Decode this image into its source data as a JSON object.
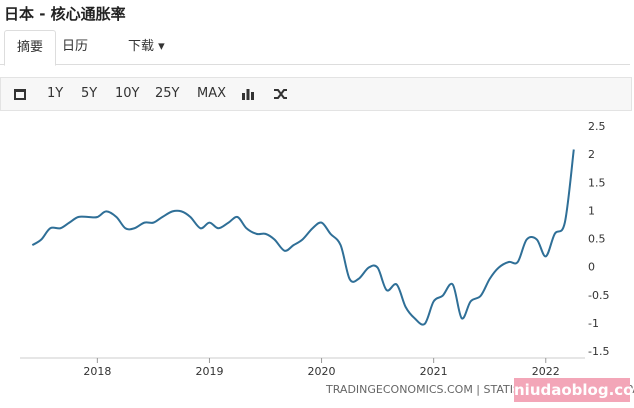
{
  "header": {
    "title": "日本 - 核心通胀率"
  },
  "tabs": [
    "摘要",
    "日历",
    "下载"
  ],
  "toolbar": [
    "1Y",
    "5Y",
    "10Y",
    "25Y",
    "MAX"
  ],
  "chart_data": {
    "type": "line",
    "x": [
      2017.42,
      2017.5,
      2017.58,
      2017.67,
      2017.75,
      2017.83,
      2017.92,
      2018,
      2018.08,
      2018.17,
      2018.25,
      2018.33,
      2018.42,
      2018.5,
      2018.58,
      2018.67,
      2018.75,
      2018.83,
      2018.92,
      2019,
      2019.08,
      2019.17,
      2019.25,
      2019.33,
      2019.42,
      2019.5,
      2019.58,
      2019.67,
      2019.75,
      2019.83,
      2019.92,
      2020,
      2020.08,
      2020.17,
      2020.25,
      2020.33,
      2020.42,
      2020.5,
      2020.58,
      2020.67,
      2020.75,
      2020.83,
      2020.92,
      2021,
      2021.08,
      2021.17,
      2021.25,
      2021.33,
      2021.42,
      2021.5,
      2021.58,
      2021.67,
      2021.75,
      2021.83,
      2021.92,
      2022,
      2022.08,
      2022.17,
      2022.25
    ],
    "series": [
      {
        "color": "#2f6f97",
        "values": [
          0.4,
          0.5,
          0.7,
          0.7,
          0.8,
          0.9,
          0.9,
          0.9,
          1.0,
          0.9,
          0.7,
          0.7,
          0.8,
          0.8,
          0.9,
          1.0,
          1.0,
          0.9,
          0.7,
          0.8,
          0.7,
          0.8,
          0.9,
          0.7,
          0.6,
          0.6,
          0.5,
          0.3,
          0.4,
          0.5,
          0.7,
          0.8,
          0.6,
          0.4,
          -0.2,
          -0.2,
          0.0,
          0.0,
          -0.4,
          -0.3,
          -0.7,
          -0.9,
          -1.0,
          -0.6,
          -0.5,
          -0.3,
          -0.9,
          -0.6,
          -0.5,
          -0.2,
          0.0,
          0.1,
          0.1,
          0.5,
          0.5,
          0.2,
          0.6,
          0.8,
          2.1
        ]
      }
    ],
    "xlim": [
      2017.31,
      2022.35
    ],
    "xticks": [
      2018,
      2019,
      2020,
      2021,
      2022
    ],
    "ylim": [
      -1.5,
      2.5
    ],
    "yticks": [
      2.5,
      2,
      1.5,
      1,
      0.5,
      0,
      -0.5,
      -1,
      -1.5
    ],
    "grid": false
  },
  "footer": {
    "source": "TRADINGECONOMICS.COM | STATISTICS BUREAU OF JAPAN",
    "watermark": "niudaoblog.com"
  }
}
